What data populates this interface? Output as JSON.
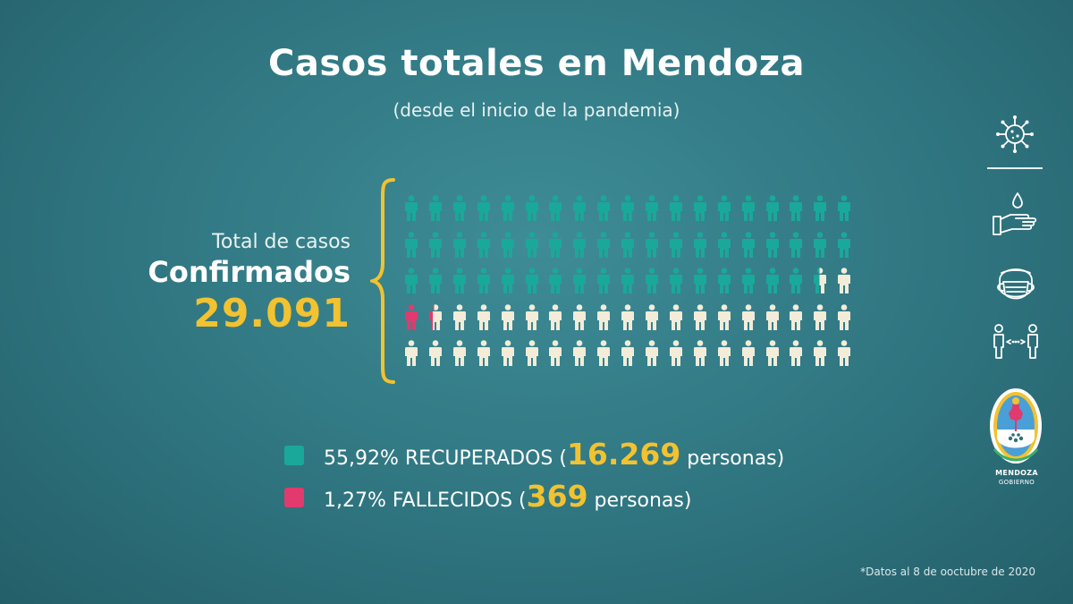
{
  "title": "Casos totales en Mendoza",
  "subtitle": "(desde el inicio de la pandemia)",
  "label": {
    "line1": "Total de casos",
    "line2": "Confirmados",
    "total": "29.091"
  },
  "pictogram": {
    "rows": 5,
    "columns": 19,
    "recovered_icons": 55,
    "deceased_icons": 1,
    "deceased_partial_icons": 1,
    "colors": {
      "recovered": "#1aa89a",
      "deceased": "#e03a6e",
      "other": "#f2ecd9"
    }
  },
  "legend": [
    {
      "percent_label": "55,92% RECUPERADOS (",
      "count": "16.269",
      "suffix": " personas)",
      "color": "#1aa89a"
    },
    {
      "percent_label": "1,27% FALLECIDOS (",
      "count": "369",
      "suffix": " personas)",
      "color": "#e03a6e"
    }
  ],
  "footnote": "*Datos al 8 de ooctubre de 2020",
  "sidebar": {
    "icons": [
      "virus-icon",
      "hand-wash-icon",
      "face-mask-icon",
      "social-distance-icon"
    ],
    "logo_line1": "MENDOZA",
    "logo_line2": "GOBIERNO"
  },
  "accent_color": "#f2c230"
}
